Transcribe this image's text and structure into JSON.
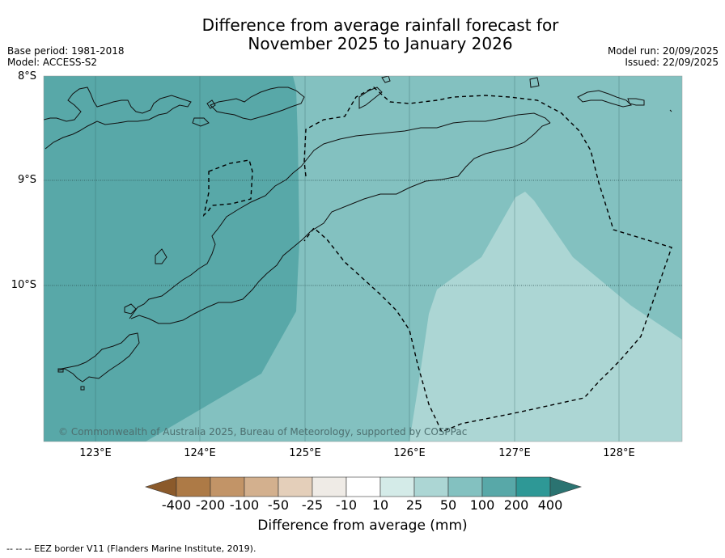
{
  "title_line1": "Difference from average rainfall forecast for",
  "title_line2": "November 2025 to January 2026",
  "meta_left": [
    "Base period: 1981-2018",
    "Model: ACCESS-S2"
  ],
  "meta_right": [
    "Model run: 20/09/2025",
    "Issued: 22/09/2025"
  ],
  "lat_labels": [
    "8°S",
    "9°S",
    "10°S"
  ],
  "lon_labels": [
    "123°E",
    "124°E",
    "125°E",
    "126°E",
    "127°E",
    "128°E"
  ],
  "copyright": "© Commonwealth of Australia 2025, Bureau of Meteorology, supported by COSPPac",
  "colorbar": {
    "labels": [
      "-400",
      "-200",
      "-100",
      "-50",
      "-25",
      "-10",
      "10",
      "25",
      "50",
      "100",
      "200",
      "400"
    ],
    "colors": [
      "#8b5a2b",
      "#ad7a46",
      "#c29467",
      "#d3b08e",
      "#e4cfba",
      "#efebe6",
      "#ffffff",
      "#d4ebe8",
      "#acd6d4",
      "#83c1c0",
      "#58a8a8",
      "#2e9896",
      "#2b7371"
    ],
    "title": "Difference from average (mm)"
  },
  "footer": "--  --  -- EEZ border V11 (Flanders Marine Institute, 2019)."
}
